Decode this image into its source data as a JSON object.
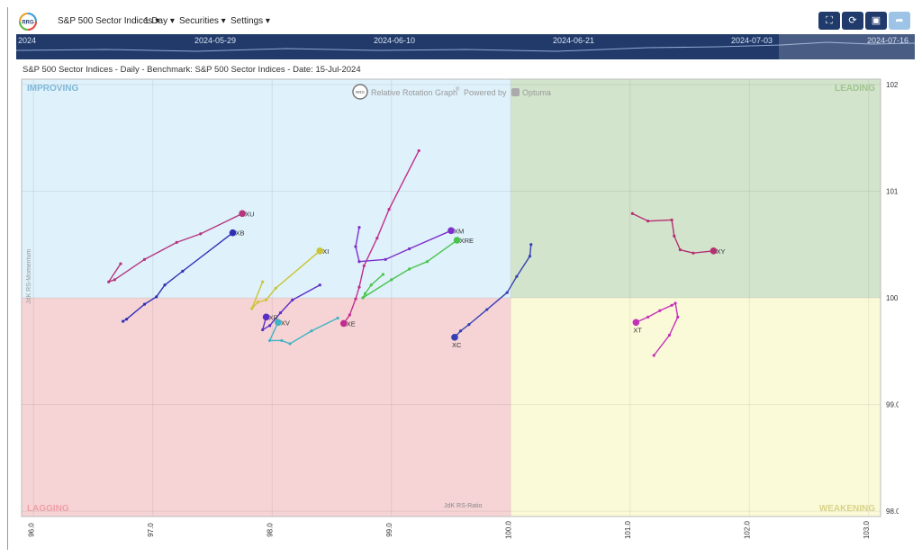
{
  "toolbar": {
    "logo_text": "RRG",
    "menus": [
      {
        "label": "S&P 500 Sector Indices ▾"
      },
      {
        "label": "1 Day ▾"
      },
      {
        "label": "Securities ▾"
      },
      {
        "label": "Settings ▾"
      }
    ],
    "buttons": [
      {
        "name": "fullscreen-button",
        "glyph": "⛶"
      },
      {
        "name": "refresh-button",
        "glyph": "⟳"
      },
      {
        "name": "save-button",
        "glyph": "▣"
      },
      {
        "name": "export-button",
        "glyph": "➦"
      }
    ]
  },
  "timeline": {
    "dates": [
      "2024",
      "2024-05-29",
      "2024-06-10",
      "2024-06-21",
      "2024-07-03",
      "2024-07-16"
    ]
  },
  "subtitle": "S&P 500 Sector Indices - Daily - Benchmark: S&P 500 Sector Indices - Date: 15-Jul-2024",
  "watermark": {
    "text": "Relative Rotation Graph",
    "sup": "®",
    "powered": "Powered by",
    "brand": "Optuma"
  },
  "chart_data": {
    "type": "scatter",
    "title": "",
    "xlabel": "JdK RS-Ratio",
    "ylabel": "JdK RS-Momentum",
    "xlim": [
      95.9,
      103.1
    ],
    "ylim": [
      97.95,
      102.05
    ],
    "xticks": [
      "96.0",
      "97.0",
      "98.0",
      "99.0",
      "100.0",
      "101.0",
      "102.0",
      "103.0"
    ],
    "yticks": [
      "98.0",
      "99.0",
      "100.0",
      "101.0",
      "102.0"
    ],
    "quadrants": {
      "improving": "IMPROVING",
      "leading": "LEADING",
      "lagging": "LAGGING",
      "weakening": "WEAKENING"
    },
    "colors": {
      "improving": "#dff1fb",
      "leading": "#d3e4cc",
      "lagging": "#f6d4d6",
      "weakening": "#fbfad8"
    },
    "series": [
      {
        "name": "XU",
        "color": "#b5367f",
        "points": [
          [
            96.73,
            100.32
          ],
          [
            96.63,
            100.15
          ],
          [
            96.68,
            100.17
          ],
          [
            96.93,
            100.36
          ],
          [
            97.2,
            100.52
          ],
          [
            97.4,
            100.6
          ],
          [
            97.75,
            100.79
          ]
        ]
      },
      {
        "name": "XB",
        "color": "#2e2fb5",
        "points": [
          [
            96.75,
            99.78
          ],
          [
            96.78,
            99.8
          ],
          [
            96.93,
            99.94
          ],
          [
            97.03,
            100.01
          ],
          [
            97.1,
            100.12
          ],
          [
            97.25,
            100.25
          ],
          [
            97.67,
            100.61
          ]
        ]
      },
      {
        "name": "XI",
        "color": "#c9c534",
        "points": [
          [
            97.92,
            100.15
          ],
          [
            97.83,
            99.9
          ],
          [
            97.88,
            99.96
          ],
          [
            97.95,
            99.98
          ],
          [
            98.03,
            100.09
          ],
          [
            98.4,
            100.44
          ]
        ]
      },
      {
        "name": "XR",
        "color": "#5b2fc9",
        "points": [
          [
            98.4,
            100.12
          ],
          [
            98.17,
            99.98
          ],
          [
            98.07,
            99.86
          ],
          [
            97.98,
            99.74
          ],
          [
            97.92,
            99.7
          ],
          [
            97.95,
            99.82
          ]
        ]
      },
      {
        "name": "XV",
        "color": "#3fb3c4",
        "points": [
          [
            98.55,
            99.81
          ],
          [
            98.33,
            99.69
          ],
          [
            98.15,
            99.57
          ],
          [
            98.08,
            99.6
          ],
          [
            97.98,
            99.6
          ],
          [
            98.05,
            99.77
          ]
        ]
      },
      {
        "name": "XE",
        "color": "#c22d8d",
        "points": [
          [
            99.23,
            101.38
          ],
          [
            98.98,
            100.83
          ],
          [
            98.88,
            100.56
          ],
          [
            98.77,
            100.3
          ],
          [
            98.73,
            100.1
          ],
          [
            98.7,
            99.99
          ],
          [
            98.65,
            99.84
          ],
          [
            98.6,
            99.76
          ]
        ]
      },
      {
        "name": "XM",
        "color": "#7e2fcc",
        "points": [
          [
            98.73,
            100.66
          ],
          [
            98.7,
            100.48
          ],
          [
            98.73,
            100.34
          ],
          [
            98.95,
            100.36
          ],
          [
            99.15,
            100.46
          ],
          [
            99.5,
            100.63
          ]
        ]
      },
      {
        "name": "XRE",
        "color": "#49c44d",
        "points": [
          [
            98.93,
            100.22
          ],
          [
            98.83,
            100.12
          ],
          [
            98.78,
            100.04
          ],
          [
            98.76,
            100.0
          ],
          [
            99.0,
            100.17
          ],
          [
            99.15,
            100.27
          ],
          [
            99.3,
            100.34
          ],
          [
            99.55,
            100.54
          ]
        ]
      },
      {
        "name": "XC",
        "color": "#3540b4",
        "points": [
          [
            100.17,
            100.5
          ],
          [
            100.16,
            100.39
          ],
          [
            100.05,
            100.2
          ],
          [
            99.97,
            100.05
          ],
          [
            99.8,
            99.89
          ],
          [
            99.65,
            99.75
          ],
          [
            99.58,
            99.69
          ],
          [
            99.53,
            99.63
          ]
        ]
      },
      {
        "name": "XY",
        "color": "#b53073",
        "points": [
          [
            101.02,
            100.79
          ],
          [
            101.15,
            100.72
          ],
          [
            101.35,
            100.73
          ],
          [
            101.37,
            100.58
          ],
          [
            101.42,
            100.45
          ],
          [
            101.53,
            100.42
          ],
          [
            101.7,
            100.44
          ]
        ]
      },
      {
        "name": "XT",
        "color": "#c530b8",
        "points": [
          [
            101.2,
            99.46
          ],
          [
            101.33,
            99.65
          ],
          [
            101.4,
            99.82
          ],
          [
            101.38,
            99.95
          ],
          [
            101.35,
            99.93
          ],
          [
            101.25,
            99.88
          ],
          [
            101.15,
            99.82
          ],
          [
            101.05,
            99.77
          ]
        ]
      }
    ]
  }
}
